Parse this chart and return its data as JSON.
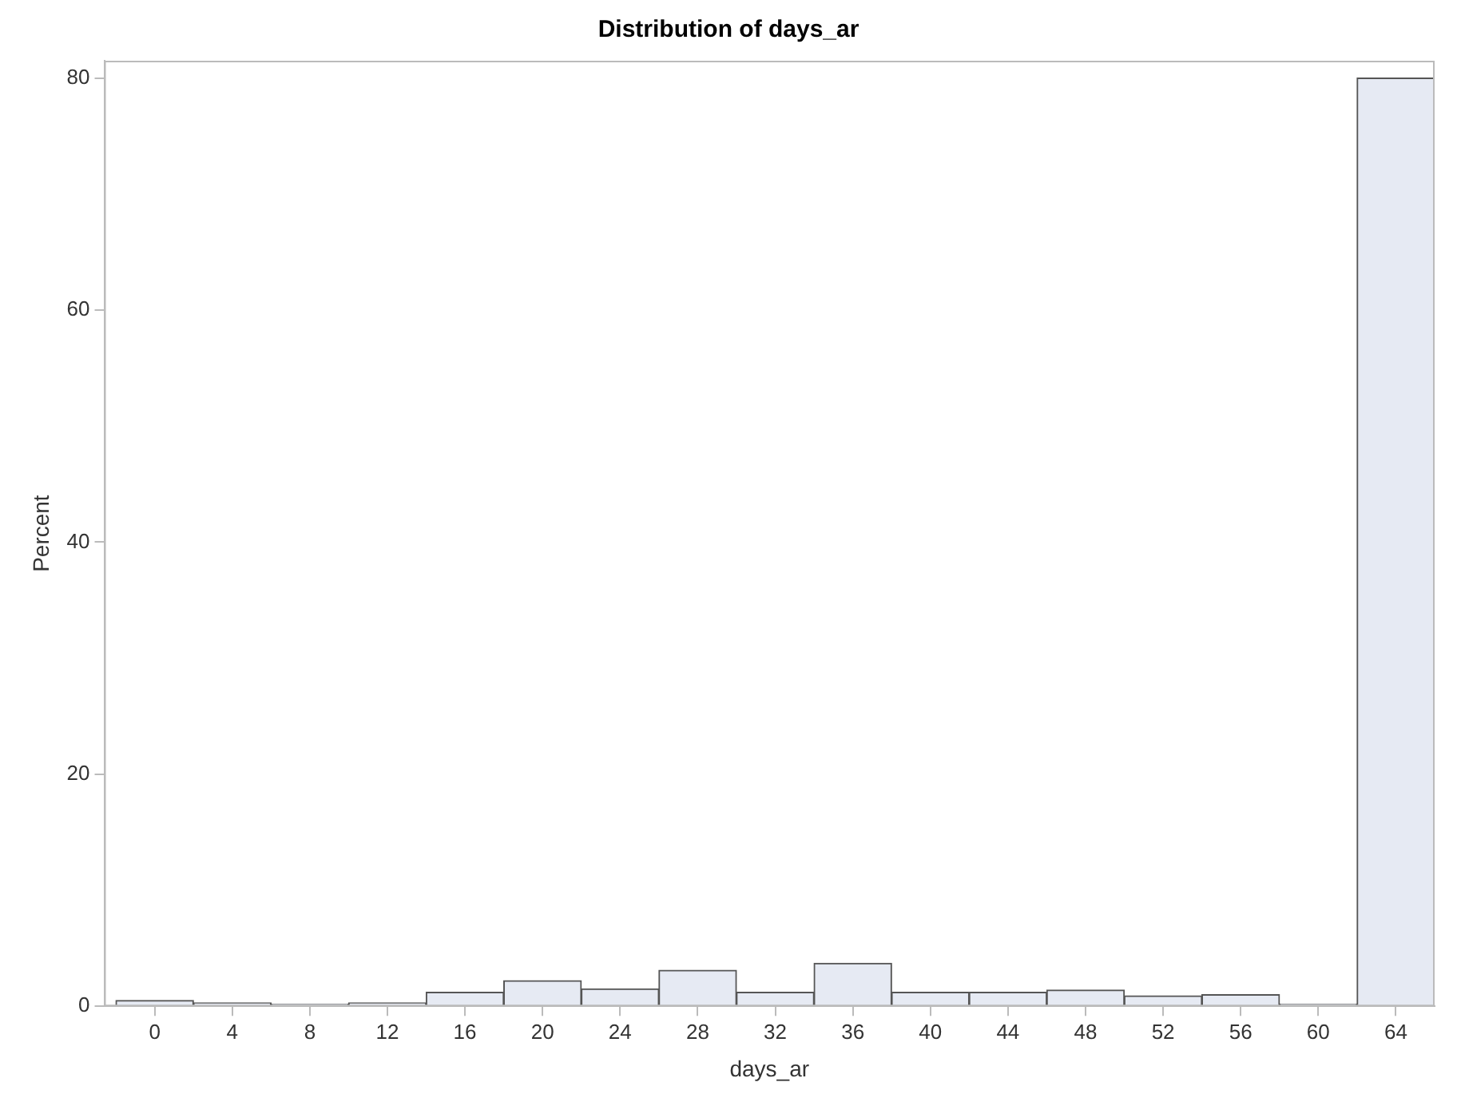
{
  "chart_data": {
    "type": "histogram",
    "title": "Distribution of days_ar",
    "xlabel": "days_ar",
    "ylabel": "Percent",
    "bins": [
      -2,
      2,
      6,
      10,
      14,
      18,
      22,
      26,
      30,
      34,
      38,
      42,
      46,
      50,
      54,
      58,
      62,
      66
    ],
    "values": [
      0.5,
      0.3,
      0.2,
      0.3,
      1.2,
      2.2,
      1.5,
      3.1,
      1.2,
      3.7,
      1.2,
      1.2,
      1.4,
      0.9,
      1.0,
      0.2,
      80
    ],
    "color": "#e6eaf3",
    "xlim": [
      -2.6,
      66
    ],
    "xticks": [
      0,
      4,
      8,
      12,
      16,
      20,
      24,
      28,
      32,
      36,
      40,
      44,
      48,
      52,
      56,
      60,
      64
    ],
    "ylim": [
      0,
      81.5
    ],
    "yticks": [
      0,
      20,
      40,
      60,
      80
    ],
    "grid": false,
    "legend": false
  }
}
